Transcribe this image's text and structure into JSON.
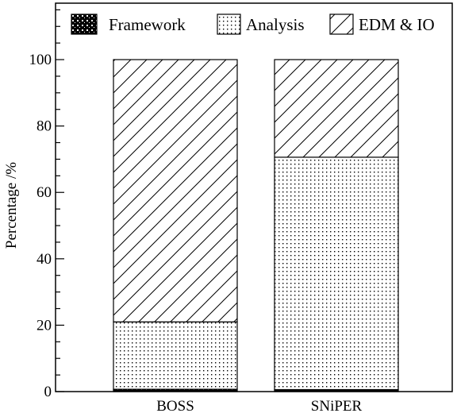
{
  "chart_data": {
    "type": "bar",
    "stacked": true,
    "categories": [
      "BOSS",
      "SNiPER"
    ],
    "series": [
      {
        "name": "Framework",
        "pattern": "checker",
        "values": [
          0.7,
          0.6
        ]
      },
      {
        "name": "Analysis",
        "pattern": "dots",
        "values": [
          20.3,
          70.0
        ]
      },
      {
        "name": "EDM & IO",
        "pattern": "hatch",
        "values": [
          79.0,
          29.4
        ]
      }
    ],
    "xlabel": "",
    "ylabel": "Percentage /%",
    "ylim": [
      0,
      117
    ],
    "yticks": [
      0,
      20,
      40,
      60,
      80,
      100
    ],
    "y_minor_step": 5,
    "grid": false,
    "legend_position": "top",
    "colors": {
      "ink": "#000000",
      "fill": "#ffffff"
    }
  }
}
